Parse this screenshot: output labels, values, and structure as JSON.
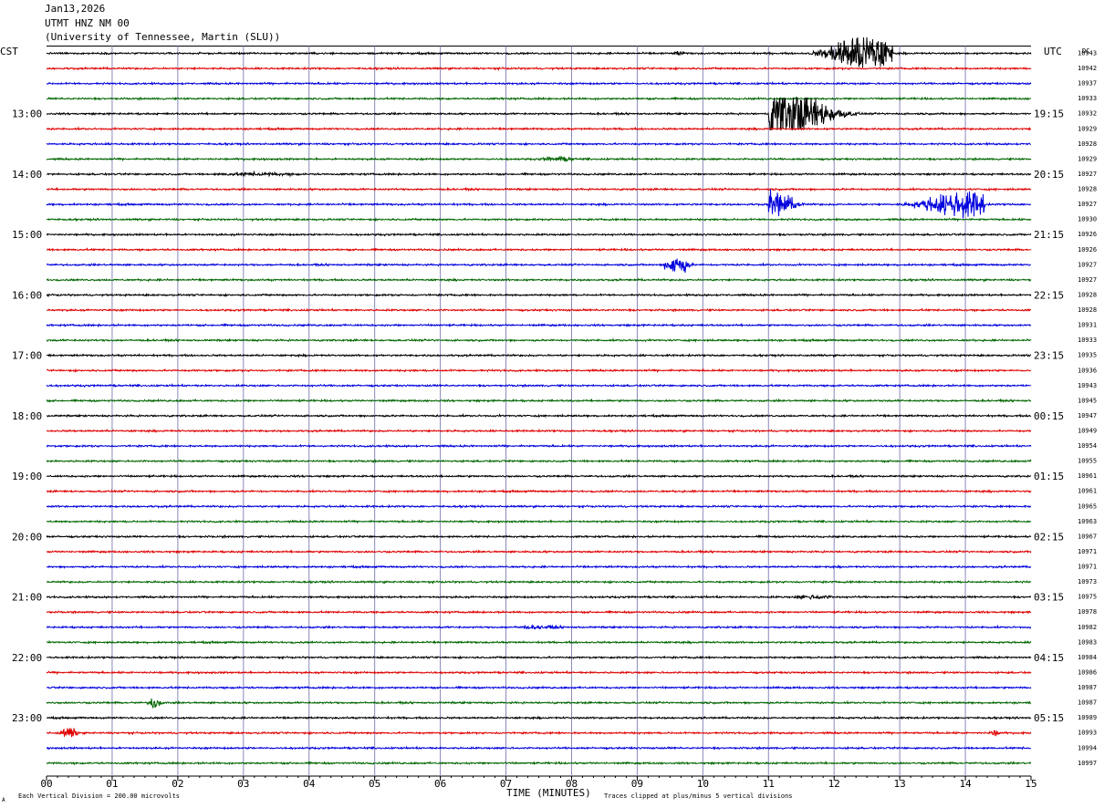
{
  "header": {
    "date": "Jan13,2026",
    "station": "UTMT HNZ NM 00",
    "network": "(University of Tennessee, Martin (SLU))"
  },
  "left_tz": "CST",
  "right_tz": "UTC",
  "dc_header": "DC",
  "footer": {
    "note_left": "Each Vertical Division =  200.00 microvolts",
    "note_right": "Traces clipped at plus/minus 5 vertical divisions",
    "corner_mark": "A"
  },
  "chart_data": {
    "type": "line",
    "title": "UTMT HNZ NM 00",
    "xlabel": "TIME (MINUTES)",
    "ylabel": "",
    "xlim": [
      0,
      15
    ],
    "x_ticks": [
      "00",
      "01",
      "02",
      "03",
      "04",
      "05",
      "06",
      "07",
      "08",
      "09",
      "10",
      "11",
      "12",
      "13",
      "14",
      "15"
    ],
    "row_colors": [
      "#000000",
      "#e00000",
      "#0000dd",
      "#006600"
    ],
    "rows_count": 48,
    "left_time_labels": [
      {
        "row": 4,
        "label": "13:00"
      },
      {
        "row": 8,
        "label": "14:00"
      },
      {
        "row": 12,
        "label": "15:00"
      },
      {
        "row": 16,
        "label": "16:00"
      },
      {
        "row": 20,
        "label": "17:00"
      },
      {
        "row": 24,
        "label": "18:00"
      },
      {
        "row": 28,
        "label": "19:00"
      },
      {
        "row": 32,
        "label": "20:00"
      },
      {
        "row": 36,
        "label": "21:00"
      },
      {
        "row": 40,
        "label": "22:00"
      },
      {
        "row": 44,
        "label": "23:00"
      }
    ],
    "right_time_labels": [
      {
        "row": 4,
        "label": "19:15"
      },
      {
        "row": 8,
        "label": "20:15"
      },
      {
        "row": 12,
        "label": "21:15"
      },
      {
        "row": 16,
        "label": "22:15"
      },
      {
        "row": 20,
        "label": "23:15"
      },
      {
        "row": 24,
        "label": "00:15"
      },
      {
        "row": 28,
        "label": "01:15"
      },
      {
        "row": 32,
        "label": "02:15"
      },
      {
        "row": 36,
        "label": "03:15"
      },
      {
        "row": 40,
        "label": "04:15"
      },
      {
        "row": 44,
        "label": "05:15"
      }
    ],
    "dc_values": [
      "10943",
      "10942",
      "10937",
      "10933",
      "10932",
      "10929",
      "10928",
      "10929",
      "10927",
      "10928",
      "10927",
      "10930",
      "10926",
      "10926",
      "10927",
      "10927",
      "10928",
      "10928",
      "10931",
      "10933",
      "10935",
      "10936",
      "10943",
      "10945",
      "10947",
      "10949",
      "10954",
      "10955",
      "10961",
      "10961",
      "10965",
      "10963",
      "10967",
      "10971",
      "10971",
      "10973",
      "10975",
      "10978",
      "10982",
      "10983",
      "10984",
      "10986",
      "10987",
      "10987",
      "10989",
      "10993",
      "10994",
      "10997"
    ],
    "events": [
      {
        "row": 0,
        "start_min": 11.6,
        "end_min": 12.9,
        "peak_min": 12.45,
        "amplitude_div": 5
      },
      {
        "row": 0,
        "start_min": 9.5,
        "end_min": 9.8,
        "peak_min": 9.65,
        "amplitude_div": 0.6
      },
      {
        "row": 4,
        "start_min": 11.0,
        "end_min": 12.4,
        "peak_min": 11.2,
        "amplitude_div": 6
      },
      {
        "row": 7,
        "start_min": 7.3,
        "end_min": 8.3,
        "peak_min": 7.8,
        "amplitude_div": 0.6
      },
      {
        "row": 8,
        "start_min": 1.8,
        "end_min": 4.5,
        "peak_min": 3.2,
        "amplitude_div": 0.4
      },
      {
        "row": 10,
        "start_min": 11.0,
        "end_min": 11.6,
        "peak_min": 11.1,
        "amplitude_div": 3
      },
      {
        "row": 10,
        "start_min": 12.9,
        "end_min": 14.3,
        "peak_min": 14.0,
        "amplitude_div": 3
      },
      {
        "row": 14,
        "start_min": 9.4,
        "end_min": 9.9,
        "peak_min": 9.6,
        "amplitude_div": 2.5
      },
      {
        "row": 36,
        "start_min": 11.2,
        "end_min": 12.3,
        "peak_min": 11.7,
        "amplitude_div": 0.5
      },
      {
        "row": 38,
        "start_min": 6.7,
        "end_min": 8.3,
        "peak_min": 7.5,
        "amplitude_div": 0.4
      },
      {
        "row": 43,
        "start_min": 1.5,
        "end_min": 1.8,
        "peak_min": 1.65,
        "amplitude_div": 1.5
      },
      {
        "row": 45,
        "start_min": 0.1,
        "end_min": 0.5,
        "peak_min": 0.35,
        "amplitude_div": 1.2
      },
      {
        "row": 45,
        "start_min": 14.3,
        "end_min": 14.6,
        "peak_min": 14.45,
        "amplitude_div": 0.8
      }
    ]
  }
}
